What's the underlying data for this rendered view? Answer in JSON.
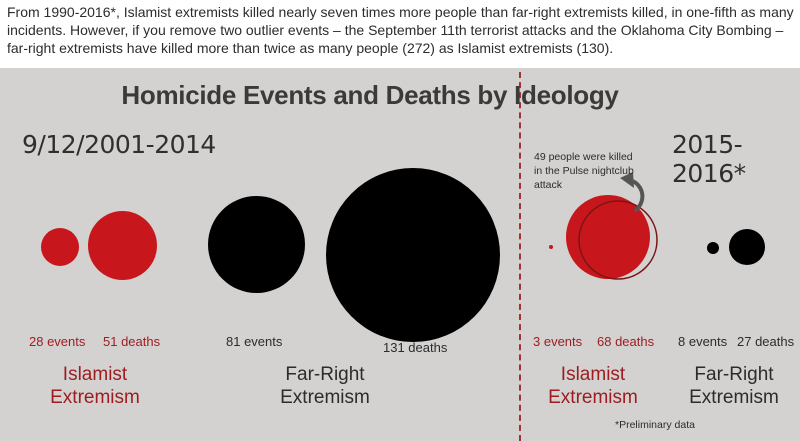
{
  "intro": "From 1990-2016*, Islamist extremists killed nearly seven times more people than far-right extremists killed, in one-fifth as many incidents. However, if you remove two outlier events – the September 11th terrorist attacks and the Oklahoma City Bombing – far-right extremists have killed more than twice as many people (272) as Islamist extremists (130).",
  "title": "Homicide Events and Deaths by Ideology",
  "periods": {
    "left": "9/12/2001-2014",
    "right": "2015-2016*"
  },
  "left": {
    "islamist": {
      "events_label": "28 events",
      "deaths_label": "51 deaths",
      "name_line1": "Islamist",
      "name_line2": "Extremism"
    },
    "far_right": {
      "events_label": "81 events",
      "deaths_label": "131 deaths",
      "name_line1": "Far-Right",
      "name_line2": "Extremism"
    }
  },
  "right": {
    "islamist": {
      "events_label": "3 events",
      "deaths_label": "68 deaths",
      "name_line1": "Islamist",
      "name_line2": "Extremism"
    },
    "far_right": {
      "events_label": "8 events",
      "deaths_label": "27 deaths",
      "name_line1": "Far-Right",
      "name_line2": "Extremism"
    }
  },
  "pulse_note": "49 people were killed in the Pulse nightclub attack",
  "footnote": "*Preliminary data",
  "colors": {
    "islamist": "#c8161d",
    "far_right": "#000000",
    "label_red": "#9d1c1f",
    "panel": "#d3d2d1"
  }
}
